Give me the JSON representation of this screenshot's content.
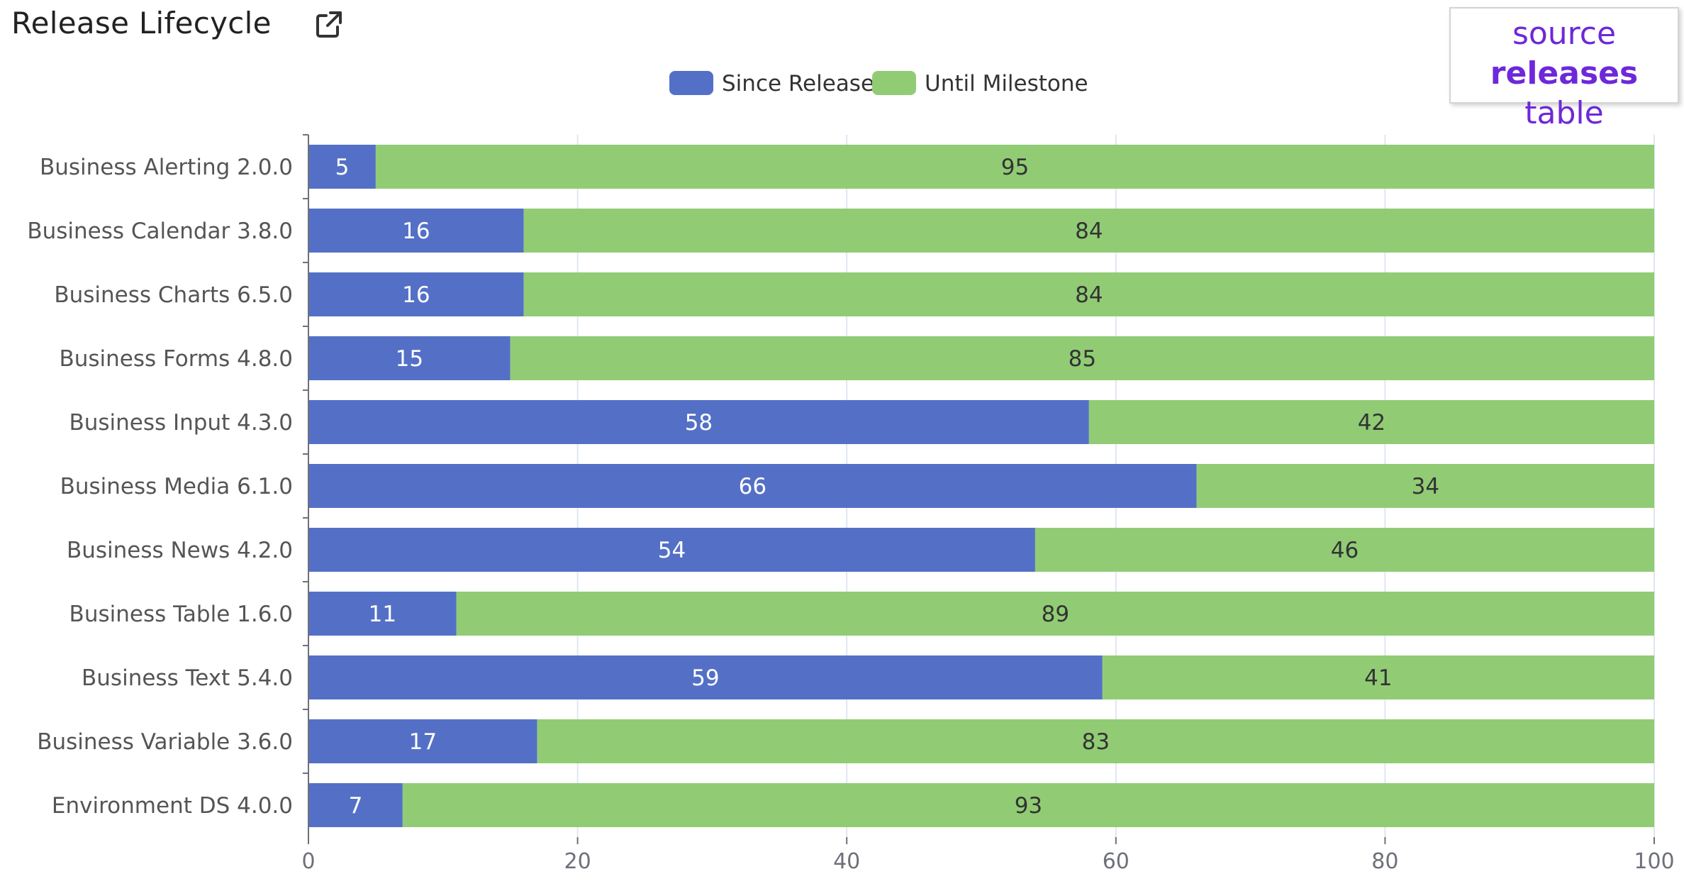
{
  "header": {
    "title": "Release Lifecycle",
    "external_link_icon": "external-link-icon"
  },
  "source_badge": {
    "line1": "source",
    "line2_bold": "releases",
    "line2_rest": " table"
  },
  "colors": {
    "since_release": "#5470c6",
    "until_milestone": "#91cc75",
    "badge_accent": "#6d28d9"
  },
  "chart_data": {
    "type": "bar",
    "orientation": "horizontal",
    "stacked": true,
    "title": "",
    "xlabel": "",
    "ylabel": "",
    "xlim": [
      0,
      100
    ],
    "x_ticks": [
      0,
      20,
      40,
      60,
      80,
      100
    ],
    "grid": true,
    "legend_position": "top-center",
    "categories": [
      "Business Alerting 2.0.0",
      "Business Calendar 3.8.0",
      "Business Charts 6.5.0",
      "Business Forms 4.8.0",
      "Business Input 4.3.0",
      "Business Media 6.1.0",
      "Business News 4.2.0",
      "Business Table 1.6.0",
      "Business Text 5.4.0",
      "Business Variable 3.6.0",
      "Environment DS 4.0.0"
    ],
    "series": [
      {
        "name": "Since Release",
        "color": "#5470c6",
        "values": [
          5,
          16,
          16,
          15,
          58,
          66,
          54,
          11,
          59,
          17,
          7
        ]
      },
      {
        "name": "Until Milestone",
        "color": "#91cc75",
        "values": [
          95,
          84,
          84,
          85,
          42,
          34,
          46,
          89,
          41,
          83,
          93
        ]
      }
    ]
  }
}
